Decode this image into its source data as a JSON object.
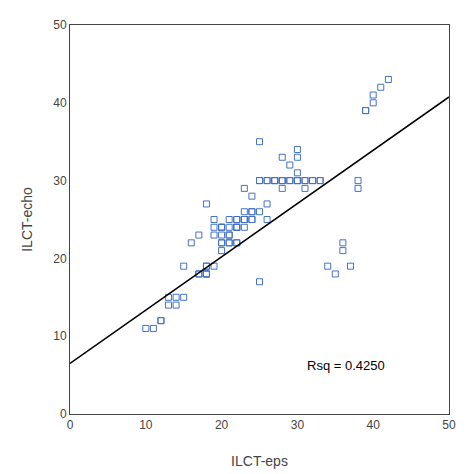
{
  "chart_data": {
    "type": "scatter",
    "xlabel": "ILCT-eps",
    "ylabel": "ILCT-echo",
    "annotation": "Rsq = 0.4250",
    "xlim": [
      0,
      50
    ],
    "ylim": [
      0,
      50
    ],
    "xticks": [
      0,
      10,
      20,
      30,
      40,
      50
    ],
    "yticks": [
      0,
      10,
      20,
      30,
      40,
      50
    ],
    "grid": false,
    "series": [
      {
        "type": "scatter",
        "marker": "square-open",
        "color": "#4472C4",
        "x": [
          10,
          11,
          12,
          12,
          13,
          13,
          14,
          14,
          15,
          15,
          16,
          17,
          17,
          17,
          18,
          18,
          18,
          18,
          18,
          18,
          19,
          19,
          19,
          19,
          20,
          20,
          20,
          20,
          20,
          20,
          20,
          21,
          21,
          21,
          21,
          21,
          21,
          22,
          22,
          22,
          22,
          22,
          22,
          22,
          23,
          23,
          23,
          23,
          23,
          23,
          24,
          24,
          24,
          24,
          24,
          25,
          25,
          25,
          25,
          25,
          26,
          26,
          26,
          26,
          27,
          27,
          27,
          28,
          28,
          28,
          28,
          28,
          29,
          29,
          29,
          30,
          30,
          30,
          30,
          30,
          30,
          31,
          31,
          31,
          32,
          32,
          33,
          33,
          34,
          35,
          36,
          36,
          37,
          38,
          38,
          39,
          39,
          40,
          40,
          41,
          42
        ],
        "values": [
          11,
          11,
          12,
          12,
          15,
          14,
          14,
          15,
          19,
          15,
          22,
          23,
          18,
          18,
          18,
          19,
          19,
          18,
          27,
          18,
          24,
          23,
          25,
          19,
          21,
          22,
          23,
          24,
          24,
          24,
          22,
          22,
          23,
          24,
          25,
          23,
          22,
          24,
          25,
          24,
          24,
          22,
          22,
          25,
          25,
          25,
          24,
          26,
          25,
          29,
          26,
          26,
          25,
          28,
          25,
          30,
          30,
          26,
          35,
          17,
          25,
          30,
          27,
          30,
          30,
          30,
          30,
          30,
          30,
          30,
          29,
          33,
          30,
          32,
          30,
          30,
          30,
          33,
          31,
          34,
          30,
          30,
          30,
          29,
          30,
          30,
          30,
          30,
          19,
          18,
          22,
          21,
          19,
          30,
          29,
          39,
          39,
          41,
          40,
          42,
          43
        ]
      },
      {
        "type": "line",
        "line_style": "solid",
        "color": "#000000",
        "x": [
          0,
          50
        ],
        "values": [
          6.5,
          40.75
        ]
      }
    ]
  }
}
